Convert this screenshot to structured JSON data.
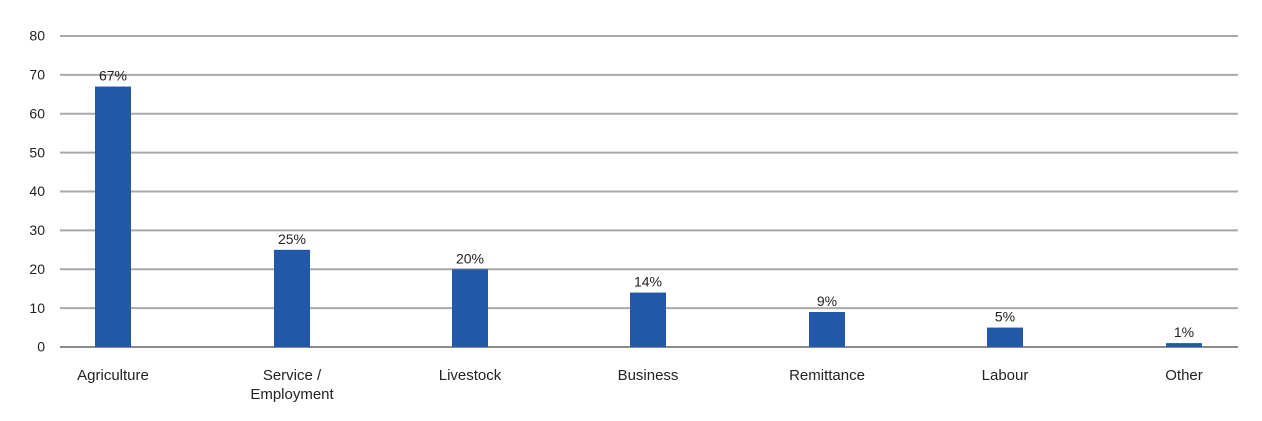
{
  "chart_data": {
    "type": "bar",
    "categories": [
      "Agriculture",
      "Service / Employment",
      "Livestock",
      "Business",
      "Remittance",
      "Labour",
      "Other"
    ],
    "category_lines": [
      [
        "Agriculture"
      ],
      [
        "Service /",
        "Employment"
      ],
      [
        "Livestock"
      ],
      [
        "Business"
      ],
      [
        "Remittance"
      ],
      [
        "Labour"
      ],
      [
        "Other"
      ]
    ],
    "values": [
      67,
      25,
      20,
      14,
      9,
      5,
      1
    ],
    "data_labels": [
      "67%",
      "25%",
      "20%",
      "14%",
      "9%",
      "5%",
      "1%"
    ],
    "yticks": [
      0,
      10,
      20,
      30,
      40,
      50,
      60,
      70,
      80
    ],
    "ylim": [
      0,
      80
    ],
    "grid": true,
    "title": "",
    "xlabel": "",
    "ylabel": "",
    "colors": {
      "bar": "#2358a8",
      "grid": "#a9a9a9",
      "axis": "#8c8c8c",
      "text": "#222222"
    }
  }
}
